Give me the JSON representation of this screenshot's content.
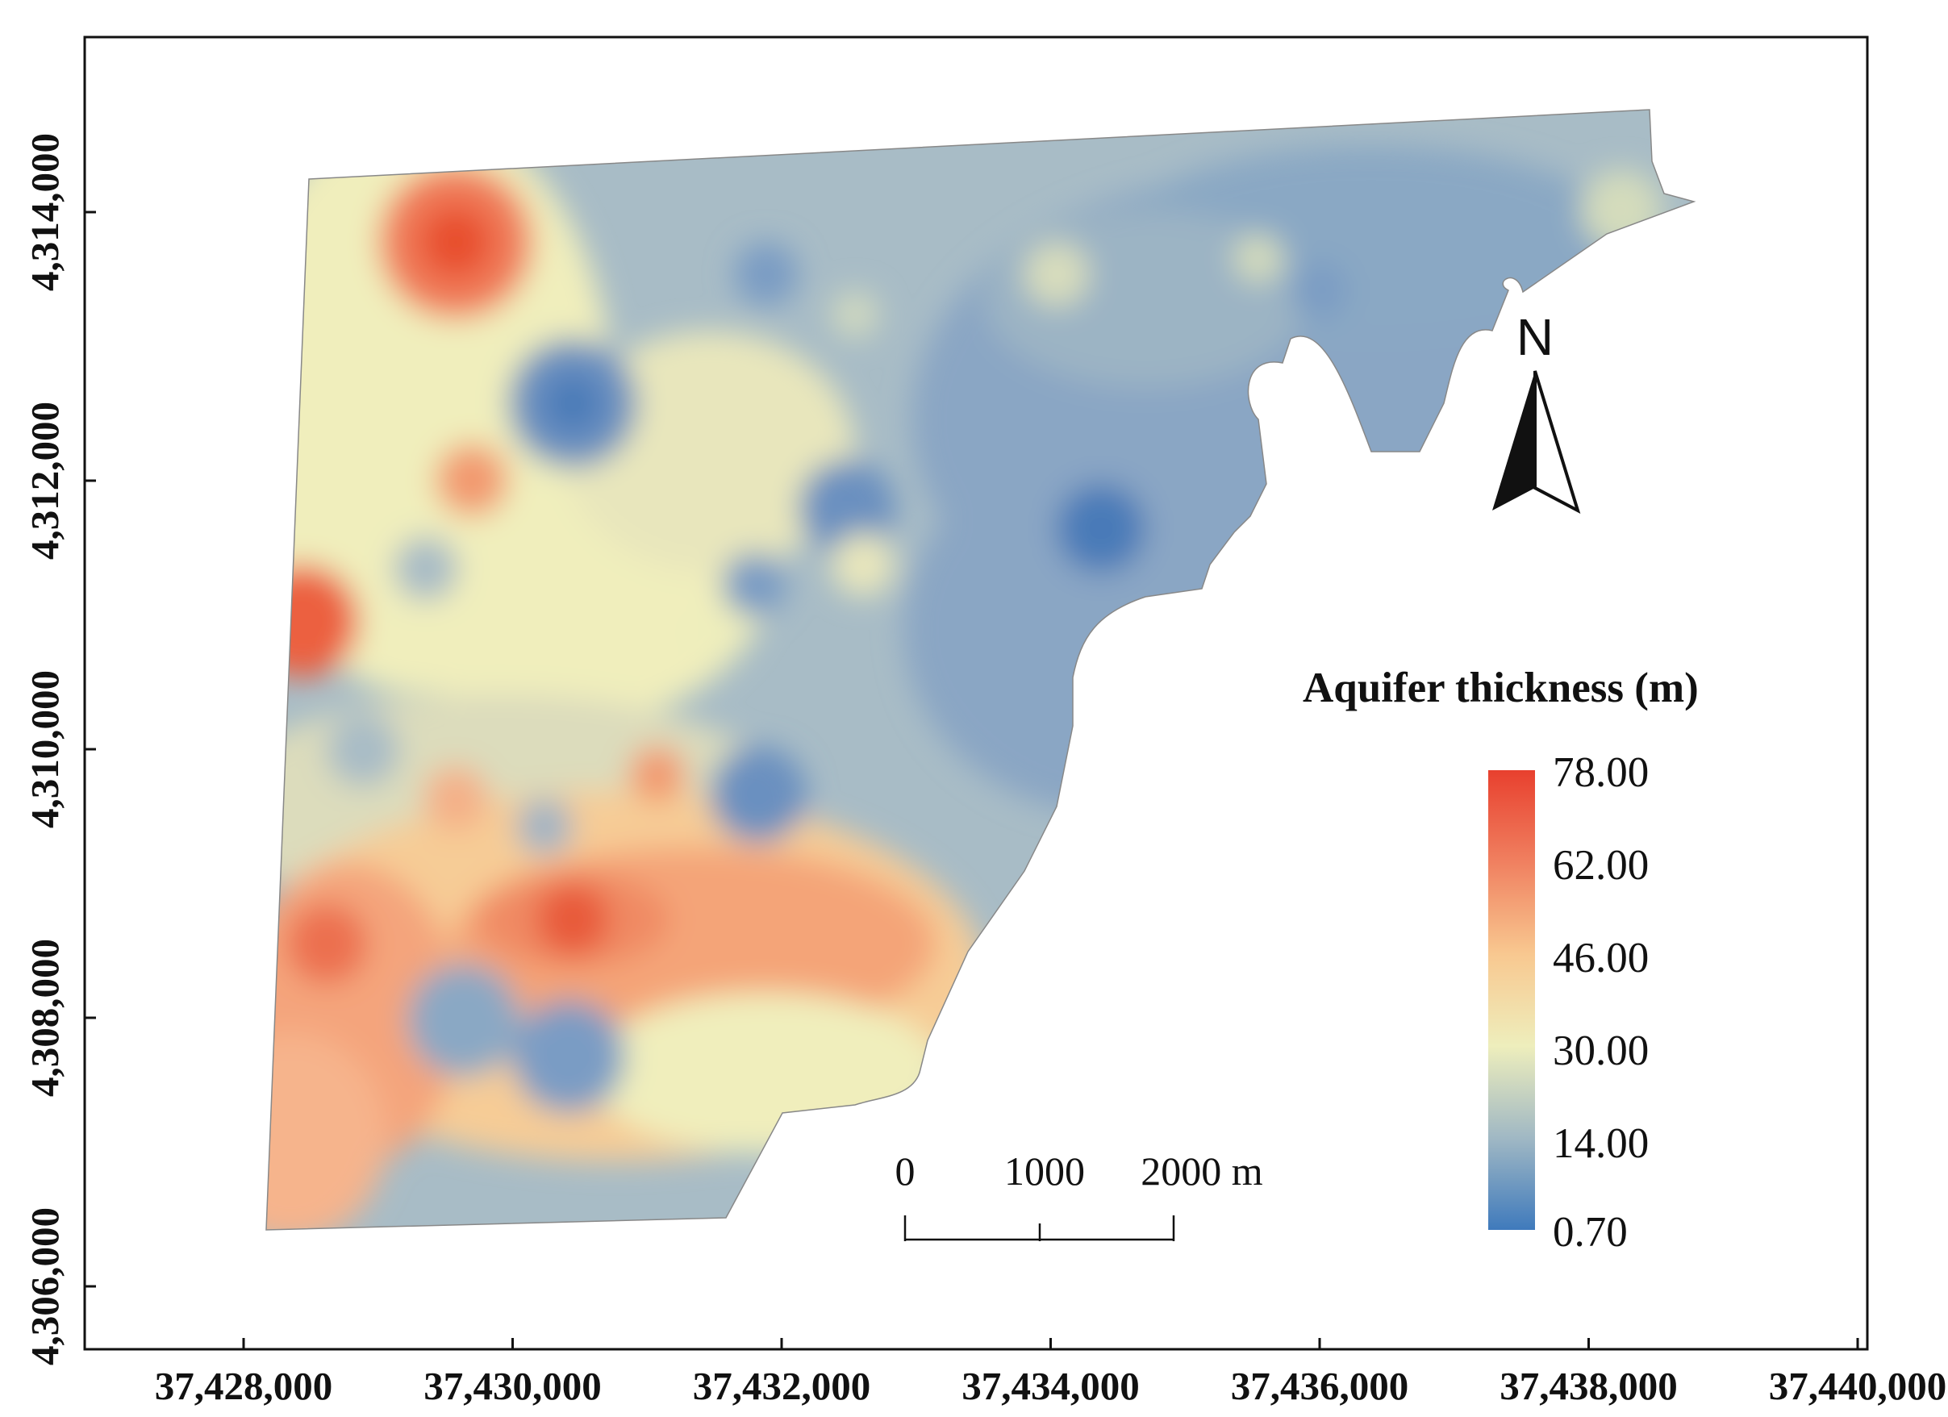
{
  "map": {
    "x_axis": {
      "ticks": [
        "37,428,000",
        "37,430,000",
        "37,432,000",
        "37,434,000",
        "37,436,000",
        "37,438,000",
        "37,440,000"
      ]
    },
    "y_axis": {
      "ticks": [
        "4,306,000",
        "4,308,000",
        "4,310,000",
        "4,312,000",
        "4,314,000"
      ]
    },
    "legend": {
      "title": "Aquifer thickness (m)",
      "values": [
        "78.00",
        "62.00",
        "46.00",
        "30.00",
        "14.00",
        "0.70"
      ],
      "colors": [
        "#e8402e",
        "#f08060",
        "#f8c890",
        "#eeeebc",
        "#a0b8c4",
        "#3f7abc"
      ]
    },
    "scale_bar": {
      "labels": [
        "0",
        "1000",
        "2000 m"
      ]
    },
    "north_arrow": {
      "letter": "N"
    }
  }
}
